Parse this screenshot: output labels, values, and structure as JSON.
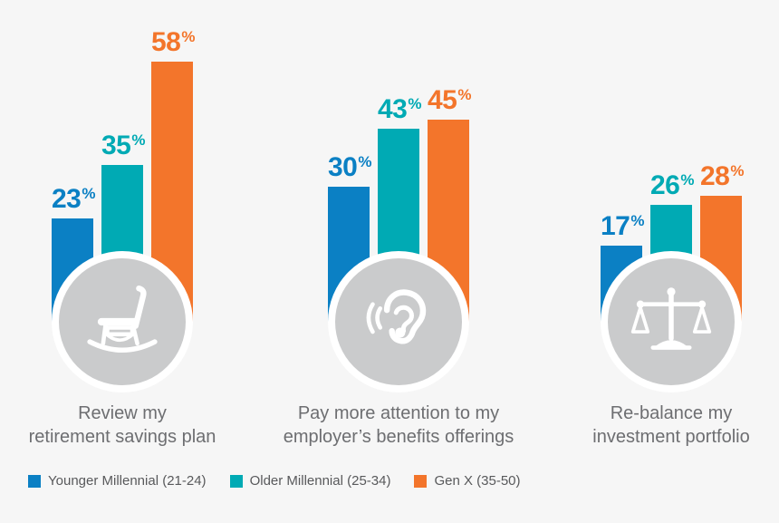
{
  "chart_data": {
    "type": "bar",
    "categories": [
      "Review my retirement savings plan",
      "Pay more attention to my employer’s benefits offerings",
      "Re-balance my investment portfolio"
    ],
    "series": [
      {
        "name": "Younger Millennial (21-24)",
        "color": "#0b80c4",
        "values": [
          23,
          30,
          17
        ]
      },
      {
        "name": "Older Millennial (25-34)",
        "color": "#00aab4",
        "values": [
          35,
          43,
          26
        ]
      },
      {
        "name": "Gen X (35-50)",
        "color": "#f3752b",
        "values": [
          58,
          45,
          28
        ]
      }
    ],
    "value_suffix": "%",
    "ylim": [
      0,
      60
    ],
    "grid": false,
    "legend_position": "bottom-left",
    "title": "",
    "xlabel": "",
    "ylabel": ""
  },
  "groups": [
    {
      "icon": "rocking-chair-icon",
      "label_lines": [
        "Review my",
        "retirement savings plan"
      ]
    },
    {
      "icon": "ear-icon",
      "label_lines": [
        "Pay more attention to my",
        "employer’s benefits offerings"
      ]
    },
    {
      "icon": "scales-icon",
      "label_lines": [
        "Re-balance my",
        "investment portfolio"
      ]
    }
  ],
  "legend": [
    {
      "label": "Younger Millennial (21-24)",
      "color": "#0b80c4"
    },
    {
      "label": "Older Millennial (25-34)",
      "color": "#00aab4"
    },
    {
      "label": "Gen X (35-50)",
      "color": "#f3752b"
    }
  ],
  "colors": {
    "background": "#f6f6f6",
    "circle_ring": "#ffffff",
    "circle_fill": "#cacbcc",
    "icon_glyph": "#ffffff",
    "category_text": "#6d6e71",
    "legend_text": "#58595b"
  }
}
